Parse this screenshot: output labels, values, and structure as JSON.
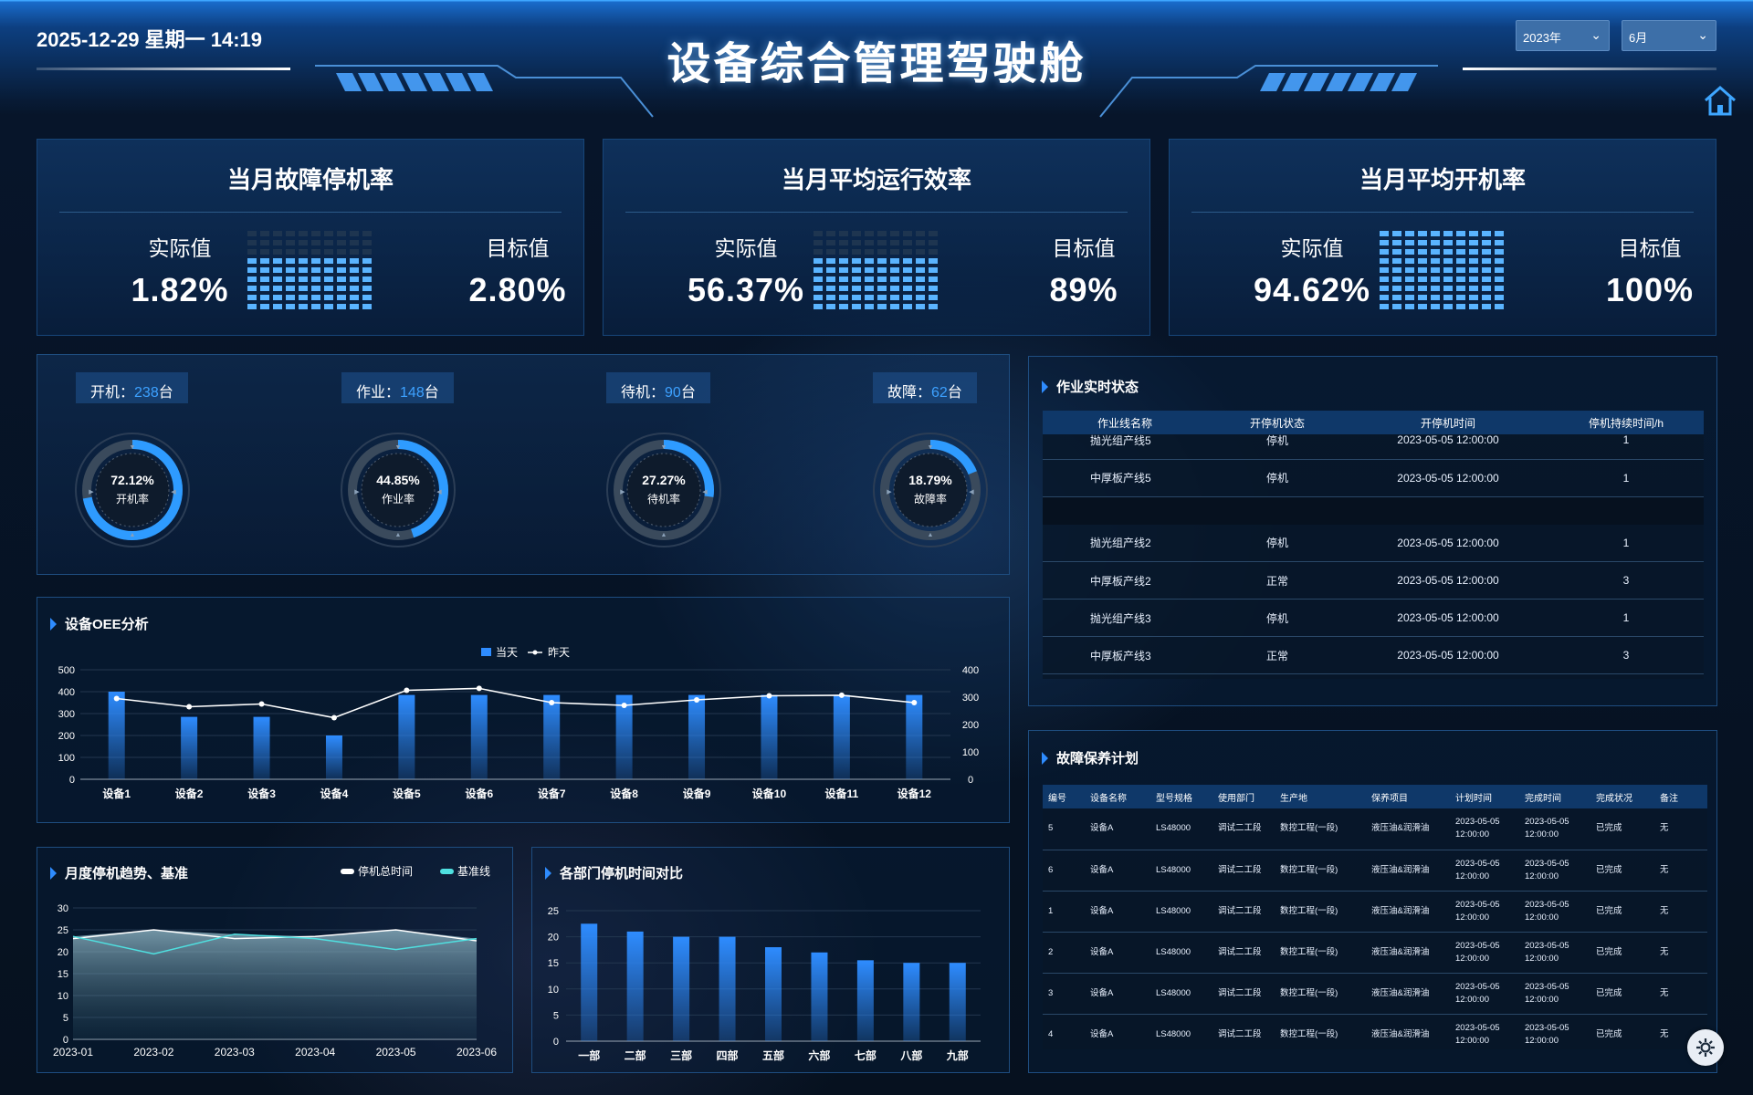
{
  "header": {
    "datetime": "2025-12-29  星期一  14:19",
    "title": "设备综合管理驾驶舱",
    "year_select": "2023年",
    "month_select": "6月"
  },
  "kpis": [
    {
      "title": "当月故障停机率",
      "actual_label": "实际值",
      "actual": "1.82%",
      "target_label": "目标值",
      "target": "2.80%",
      "fill_ratio": 0.65
    },
    {
      "title": "当月平均运行效率",
      "actual_label": "实际值",
      "actual": "56.37%",
      "target_label": "目标值",
      "target": "89%",
      "fill_ratio": 0.63
    },
    {
      "title": "当月平均开机率",
      "actual_label": "实际值",
      "actual": "94.62%",
      "target_label": "目标值",
      "target": "100%",
      "fill_ratio": 0.95
    }
  ],
  "machine_status": [
    {
      "label": "开机：",
      "count": "238",
      "unit": "台",
      "pct": "72.12%",
      "pct_value": 72.12,
      "gauge_label": "开机率"
    },
    {
      "label": "作业：",
      "count": "148",
      "unit": "台",
      "pct": "44.85%",
      "pct_value": 44.85,
      "gauge_label": "作业率"
    },
    {
      "label": "待机：",
      "count": "90",
      "unit": "台",
      "pct": "27.27%",
      "pct_value": 27.27,
      "gauge_label": "待机率"
    },
    {
      "label": "故障：",
      "count": "62",
      "unit": "台",
      "pct": "18.79%",
      "pct_value": 18.79,
      "gauge_label": "故障率"
    }
  ],
  "realtime": {
    "title": "作业实时状态",
    "headers": [
      "作业线名称",
      "开停机状态",
      "开停机时间",
      "停机持续时间/h"
    ],
    "rows_top": [
      [
        "抛光组产线5",
        "停机",
        "2023-05-05 12:00:00",
        "1"
      ],
      [
        "中厚板产线5",
        "停机",
        "2023-05-05 12:00:00",
        "1"
      ]
    ],
    "rows": [
      [
        "抛光组产线2",
        "停机",
        "2023-05-05 12:00:00",
        "1"
      ],
      [
        "中厚板产线2",
        "正常",
        "2023-05-05 12:00:00",
        "3"
      ],
      [
        "抛光组产线3",
        "停机",
        "2023-05-05 12:00:00",
        "1"
      ],
      [
        "中厚板产线3",
        "正常",
        "2023-05-05 12:00:00",
        "3"
      ]
    ]
  },
  "maintenance": {
    "title": "故障保养计划",
    "headers": [
      "编号",
      "设备名称",
      "型号规格",
      "使用部门",
      "生产地",
      "保养项目",
      "计划时间",
      "完成时间",
      "完成状况",
      "备注"
    ],
    "rows": [
      [
        "5",
        "设备A",
        "LS48000",
        "调试二工段",
        "数控工程(一段)",
        "液压油&润滑油",
        "2023-05-05 12:00:00",
        "2023-05-05 12:00:00",
        "已完成",
        "无"
      ],
      [
        "6",
        "设备A",
        "LS48000",
        "调试二工段",
        "数控工程(一段)",
        "液压油&润滑油",
        "2023-05-05 12:00:00",
        "2023-05-05 12:00:00",
        "已完成",
        "无"
      ],
      [
        "1",
        "设备A",
        "LS48000",
        "调试二工段",
        "数控工程(一段)",
        "液压油&润滑油",
        "2023-05-05 12:00:00",
        "2023-05-05 12:00:00",
        "已完成",
        "无"
      ],
      [
        "2",
        "设备A",
        "LS48000",
        "调试二工段",
        "数控工程(一段)",
        "液压油&润滑油",
        "2023-05-05 12:00:00",
        "2023-05-05 12:00:00",
        "已完成",
        "无"
      ],
      [
        "3",
        "设备A",
        "LS48000",
        "调试二工段",
        "数控工程(一段)",
        "液压油&润滑油",
        "2023-05-05 12:00:00",
        "2023-05-05 12:00:00",
        "已完成",
        "无"
      ],
      [
        "4",
        "设备A",
        "LS48000",
        "调试二工段",
        "数控工程(一段)",
        "液压油&润滑油",
        "2023-05-05 12:00:00",
        "2023-05-05 12:00:00",
        "已完成",
        "无"
      ]
    ]
  },
  "chart_data": [
    {
      "type": "bar",
      "title": "设备OEE分析",
      "categories": [
        "设备1",
        "设备2",
        "设备3",
        "设备4",
        "设备5",
        "设备6",
        "设备7",
        "设备8",
        "设备9",
        "设备10",
        "设备11",
        "设备12"
      ],
      "series": [
        {
          "name": "当天",
          "type": "bar",
          "axis": "left",
          "values": [
            400,
            285,
            285,
            200,
            385,
            385,
            385,
            385,
            385,
            385,
            385,
            385
          ]
        },
        {
          "name": "昨天",
          "type": "line",
          "axis": "right",
          "values": [
            295,
            265,
            275,
            225,
            325,
            332,
            280,
            270,
            290,
            305,
            307,
            280
          ]
        }
      ],
      "yticks_left": [
        "0",
        "100",
        "200",
        "300",
        "400",
        "500"
      ],
      "ylim_left": [
        0,
        500
      ],
      "yticks_right": [
        "0",
        "100",
        "200",
        "300",
        "400"
      ],
      "ylim_right": [
        0,
        400
      ],
      "legend": "top-center",
      "colors": {
        "bar": "#2e8cff",
        "line": "#ffffff"
      }
    },
    {
      "type": "area",
      "title": "月度停机趋势、基准",
      "categories": [
        "2023-01",
        "2023-02",
        "2023-03",
        "2023-04",
        "2023-05",
        "2023-06"
      ],
      "series": [
        {
          "name": "停机总时间",
          "values": [
            23,
            25,
            23,
            23.5,
            25,
            22.5
          ]
        },
        {
          "name": "基准线",
          "values": [
            23.5,
            19.5,
            24,
            23,
            20.5,
            23
          ]
        }
      ],
      "yticks": [
        "0",
        "5",
        "10",
        "15",
        "20",
        "25",
        "30"
      ],
      "ylim": [
        0,
        30
      ],
      "legend": "top-right",
      "colors": {
        "total": "#ffffff",
        "base": "#4fe0e0"
      }
    },
    {
      "type": "bar",
      "title": "各部门停机时间对比",
      "categories": [
        "一部",
        "二部",
        "三部",
        "四部",
        "五部",
        "六部",
        "七部",
        "八部",
        "九部"
      ],
      "values": [
        22.5,
        21,
        20,
        20,
        18,
        17,
        15.5,
        15,
        15
      ],
      "yticks": [
        "0",
        "5",
        "10",
        "15",
        "20",
        "25"
      ],
      "ylim": [
        0,
        25
      ],
      "colors": {
        "bar": "#2e8cff"
      }
    }
  ]
}
